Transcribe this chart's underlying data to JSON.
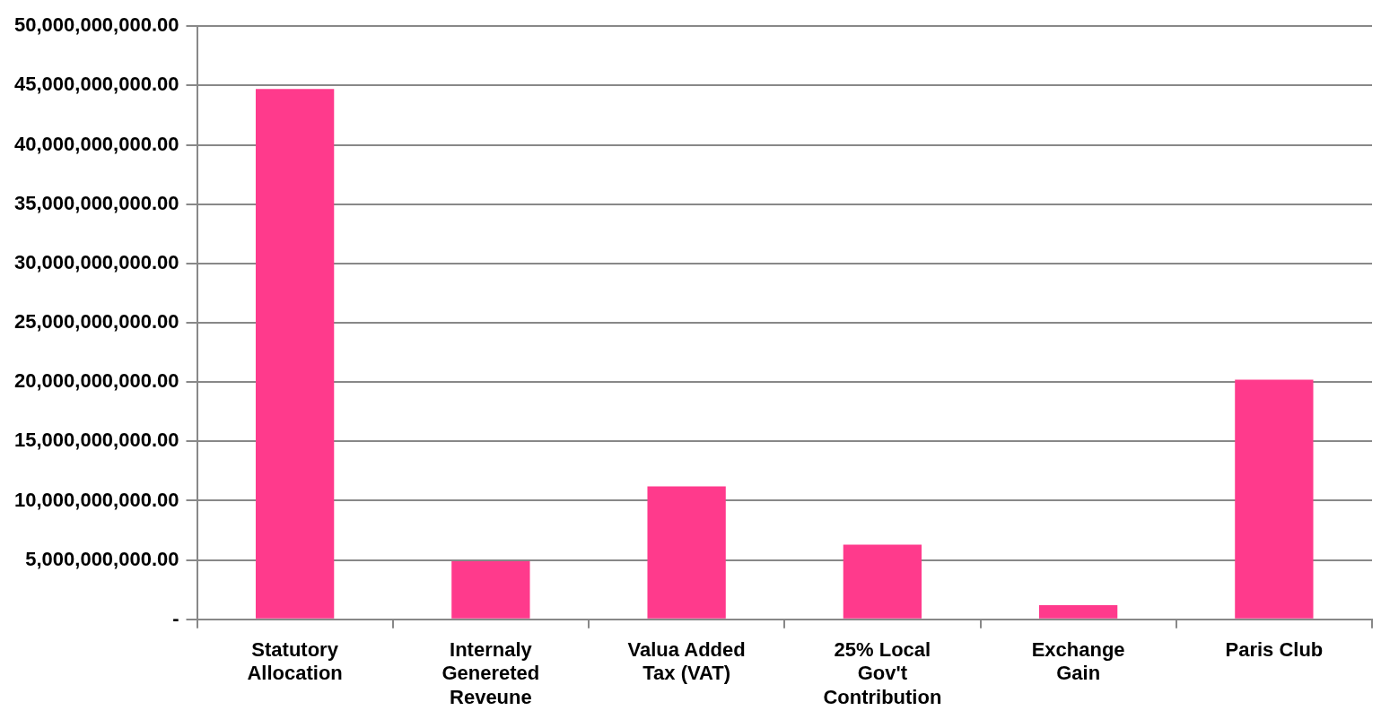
{
  "chart_data": {
    "type": "bar",
    "categories": [
      "Statutory Allocation",
      "Internaly Genereted Reveune",
      "Valua Added Tax (VAT)",
      "25% Local Gov't Contribution",
      "Exchange Gain",
      "Paris Club"
    ],
    "values": [
      44700000000,
      4900000000,
      11200000000,
      6300000000,
      1200000000,
      20200000000
    ],
    "color": "#ff3a8c",
    "ylim": [
      0,
      50000000000
    ],
    "yticks": [
      {
        "value": 0,
        "label": "-"
      },
      {
        "value": 5000000000,
        "label": "5,000,000,000.00"
      },
      {
        "value": 10000000000,
        "label": "10,000,000,000.00"
      },
      {
        "value": 15000000000,
        "label": "15,000,000,000.00"
      },
      {
        "value": 20000000000,
        "label": "20,000,000,000.00"
      },
      {
        "value": 25000000000,
        "label": "25,000,000,000.00"
      },
      {
        "value": 30000000000,
        "label": "30,000,000,000.00"
      },
      {
        "value": 35000000000,
        "label": "35,000,000,000.00"
      },
      {
        "value": 40000000000,
        "label": "40,000,000,000.00"
      },
      {
        "value": 45000000000,
        "label": "45,000,000,000.00"
      },
      {
        "value": 50000000000,
        "label": "50,000,000,000.00"
      }
    ],
    "grid": "y"
  }
}
